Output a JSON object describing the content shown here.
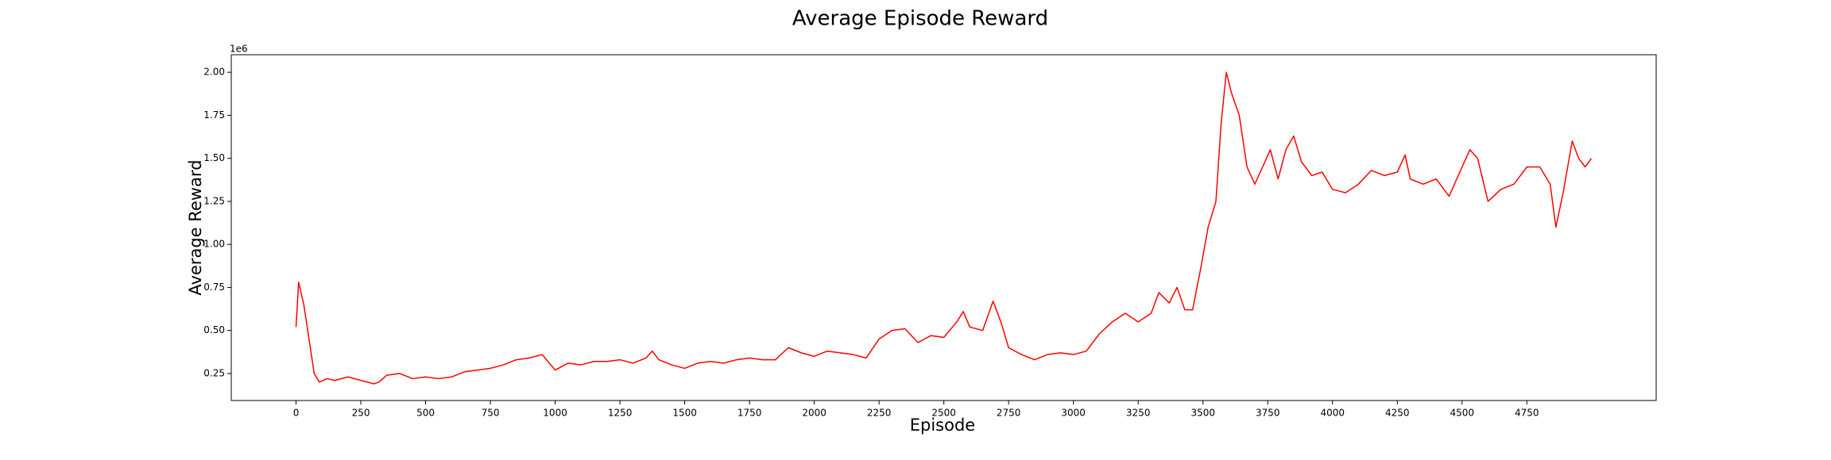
{
  "chart_data": {
    "type": "line",
    "title": "Average Episode Reward",
    "x_label": "Episode",
    "y_label": "Average Reward",
    "y_offset_label": "1e6",
    "xlim": [
      -250,
      5249
    ],
    "ylim": [
      0.093,
      2.102
    ],
    "xticks": [
      0,
      250,
      500,
      750,
      1000,
      1250,
      1500,
      1750,
      2000,
      2250,
      2500,
      2750,
      3000,
      3250,
      3500,
      3750,
      4000,
      4250,
      4500,
      4750
    ],
    "yticks": [
      0.25,
      {
        "value": 0.5,
        "label": "0.50"
      },
      0.75,
      {
        "value": 1.0,
        "label": "1.00"
      },
      1.25,
      {
        "value": 1.5,
        "label": "1.50"
      },
      1.75,
      {
        "value": 2.0,
        "label": "2.00"
      }
    ],
    "grid": false,
    "series": [
      {
        "color": "#ff0000",
        "x": [
          0,
          10,
          30,
          50,
          70,
          90,
          120,
          150,
          200,
          250,
          300,
          320,
          350,
          400,
          450,
          500,
          550,
          600,
          650,
          700,
          750,
          800,
          850,
          900,
          950,
          1000,
          1050,
          1100,
          1150,
          1200,
          1250,
          1300,
          1350,
          1375,
          1400,
          1450,
          1500,
          1550,
          1600,
          1650,
          1700,
          1750,
          1800,
          1850,
          1900,
          1950,
          2000,
          2050,
          2100,
          2150,
          2200,
          2250,
          2300,
          2350,
          2400,
          2450,
          2500,
          2550,
          2575,
          2600,
          2650,
          2690,
          2720,
          2750,
          2800,
          2850,
          2900,
          2950,
          3000,
          3050,
          3100,
          3150,
          3200,
          3250,
          3300,
          3330,
          3370,
          3400,
          3430,
          3460,
          3490,
          3520,
          3550,
          3570,
          3590,
          3610,
          3640,
          3670,
          3700,
          3730,
          3760,
          3790,
          3820,
          3850,
          3880,
          3920,
          3960,
          4000,
          4050,
          4100,
          4150,
          4200,
          4250,
          4280,
          4300,
          4350,
          4400,
          4450,
          4500,
          4530,
          4560,
          4600,
          4650,
          4700,
          4750,
          4800,
          4840,
          4862,
          4890,
          4925,
          4950,
          4975,
          4999
        ],
        "values": [
          0.52,
          0.78,
          0.65,
          0.45,
          0.25,
          0.2,
          0.22,
          0.21,
          0.23,
          0.21,
          0.19,
          0.2,
          0.24,
          0.25,
          0.22,
          0.23,
          0.22,
          0.23,
          0.26,
          0.27,
          0.28,
          0.3,
          0.33,
          0.34,
          0.36,
          0.27,
          0.31,
          0.3,
          0.32,
          0.32,
          0.33,
          0.31,
          0.34,
          0.38,
          0.33,
          0.3,
          0.28,
          0.31,
          0.32,
          0.31,
          0.33,
          0.34,
          0.33,
          0.33,
          0.4,
          0.37,
          0.35,
          0.38,
          0.37,
          0.36,
          0.34,
          0.45,
          0.5,
          0.51,
          0.43,
          0.47,
          0.46,
          0.55,
          0.61,
          0.52,
          0.5,
          0.67,
          0.55,
          0.4,
          0.36,
          0.33,
          0.36,
          0.37,
          0.36,
          0.38,
          0.48,
          0.55,
          0.6,
          0.55,
          0.6,
          0.72,
          0.66,
          0.75,
          0.62,
          0.62,
          0.85,
          1.1,
          1.25,
          1.7,
          2.0,
          1.88,
          1.75,
          1.45,
          1.35,
          1.45,
          1.55,
          1.38,
          1.55,
          1.63,
          1.48,
          1.4,
          1.42,
          1.32,
          1.3,
          1.35,
          1.43,
          1.4,
          1.42,
          1.52,
          1.38,
          1.35,
          1.38,
          1.28,
          1.45,
          1.55,
          1.5,
          1.25,
          1.32,
          1.35,
          1.45,
          1.45,
          1.35,
          1.1,
          1.3,
          1.6,
          1.5,
          1.45,
          1.5
        ]
      }
    ]
  }
}
